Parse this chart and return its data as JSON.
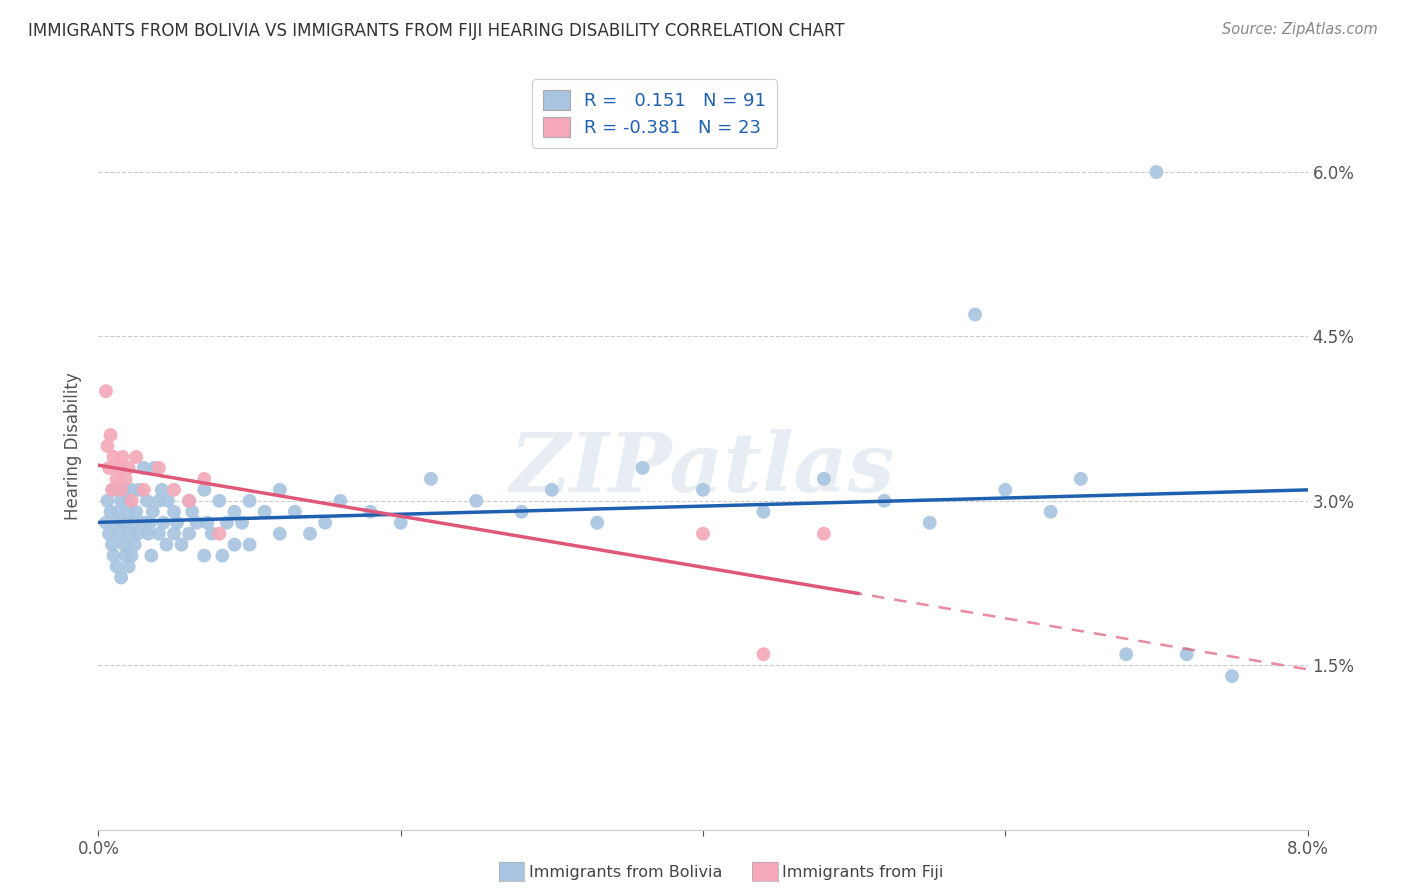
{
  "title": "IMMIGRANTS FROM BOLIVIA VS IMMIGRANTS FROM FIJI HEARING DISABILITY CORRELATION CHART",
  "source": "Source: ZipAtlas.com",
  "ylabel_label": "Hearing Disability",
  "xlim": [
    0.0,
    0.08
  ],
  "ylim": [
    0.0,
    0.07
  ],
  "xticks": [
    0.0,
    0.02,
    0.04,
    0.06,
    0.08
  ],
  "xticklabels": [
    "0.0%",
    "",
    "",
    "",
    "8.0%"
  ],
  "yticks": [
    0.015,
    0.03,
    0.045,
    0.06
  ],
  "yticklabels": [
    "1.5%",
    "3.0%",
    "4.5%",
    "6.0%"
  ],
  "bolivia_color": "#a8c4e0",
  "fiji_color": "#f4a8b8",
  "bolivia_line_color": "#2060b0",
  "fiji_line_color": "#e05878",
  "watermark": "ZIPatlas",
  "bolivia_x": [
    0.0005,
    0.0006,
    0.0007,
    0.0008,
    0.0009,
    0.001,
    0.001,
    0.0012,
    0.0012,
    0.0013,
    0.0014,
    0.0015,
    0.0015,
    0.0016,
    0.0017,
    0.0017,
    0.0018,
    0.0019,
    0.002,
    0.002,
    0.002,
    0.0021,
    0.0022,
    0.0022,
    0.0023,
    0.0024,
    0.0025,
    0.0026,
    0.0027,
    0.003,
    0.003,
    0.0032,
    0.0033,
    0.0034,
    0.0035,
    0.0036,
    0.0037,
    0.004,
    0.004,
    0.0042,
    0.0043,
    0.0045,
    0.0046,
    0.005,
    0.005,
    0.0052,
    0.0055,
    0.006,
    0.006,
    0.0062,
    0.0065,
    0.007,
    0.007,
    0.0072,
    0.0075,
    0.008,
    0.0082,
    0.0085,
    0.009,
    0.009,
    0.0095,
    0.01,
    0.01,
    0.011,
    0.012,
    0.012,
    0.013,
    0.014,
    0.015,
    0.016,
    0.018,
    0.02,
    0.022,
    0.025,
    0.028,
    0.03,
    0.033,
    0.036,
    0.04,
    0.044,
    0.048,
    0.052,
    0.055,
    0.058,
    0.06,
    0.063,
    0.065,
    0.068,
    0.07,
    0.072,
    0.075
  ],
  "bolivia_y": [
    0.028,
    0.03,
    0.027,
    0.029,
    0.026,
    0.031,
    0.025,
    0.028,
    0.024,
    0.029,
    0.027,
    0.03,
    0.023,
    0.028,
    0.026,
    0.031,
    0.025,
    0.028,
    0.03,
    0.024,
    0.029,
    0.027,
    0.031,
    0.025,
    0.028,
    0.026,
    0.029,
    0.027,
    0.031,
    0.028,
    0.033,
    0.03,
    0.027,
    0.028,
    0.025,
    0.029,
    0.033,
    0.03,
    0.027,
    0.031,
    0.028,
    0.026,
    0.03,
    0.029,
    0.027,
    0.028,
    0.026,
    0.03,
    0.027,
    0.029,
    0.028,
    0.031,
    0.025,
    0.028,
    0.027,
    0.03,
    0.025,
    0.028,
    0.029,
    0.026,
    0.028,
    0.03,
    0.026,
    0.029,
    0.027,
    0.031,
    0.029,
    0.027,
    0.028,
    0.03,
    0.029,
    0.028,
    0.032,
    0.03,
    0.029,
    0.031,
    0.028,
    0.033,
    0.031,
    0.029,
    0.032,
    0.03,
    0.028,
    0.047,
    0.031,
    0.029,
    0.032,
    0.016,
    0.06,
    0.016,
    0.014
  ],
  "fiji_x": [
    0.0005,
    0.0006,
    0.0007,
    0.0008,
    0.0009,
    0.001,
    0.0012,
    0.0014,
    0.0015,
    0.0016,
    0.0018,
    0.002,
    0.0022,
    0.0025,
    0.003,
    0.004,
    0.005,
    0.006,
    0.007,
    0.008,
    0.04,
    0.044,
    0.048
  ],
  "fiji_y": [
    0.04,
    0.035,
    0.033,
    0.036,
    0.031,
    0.034,
    0.032,
    0.033,
    0.031,
    0.034,
    0.032,
    0.033,
    0.03,
    0.034,
    0.031,
    0.033,
    0.031,
    0.03,
    0.032,
    0.027,
    0.027,
    0.016,
    0.027
  ]
}
